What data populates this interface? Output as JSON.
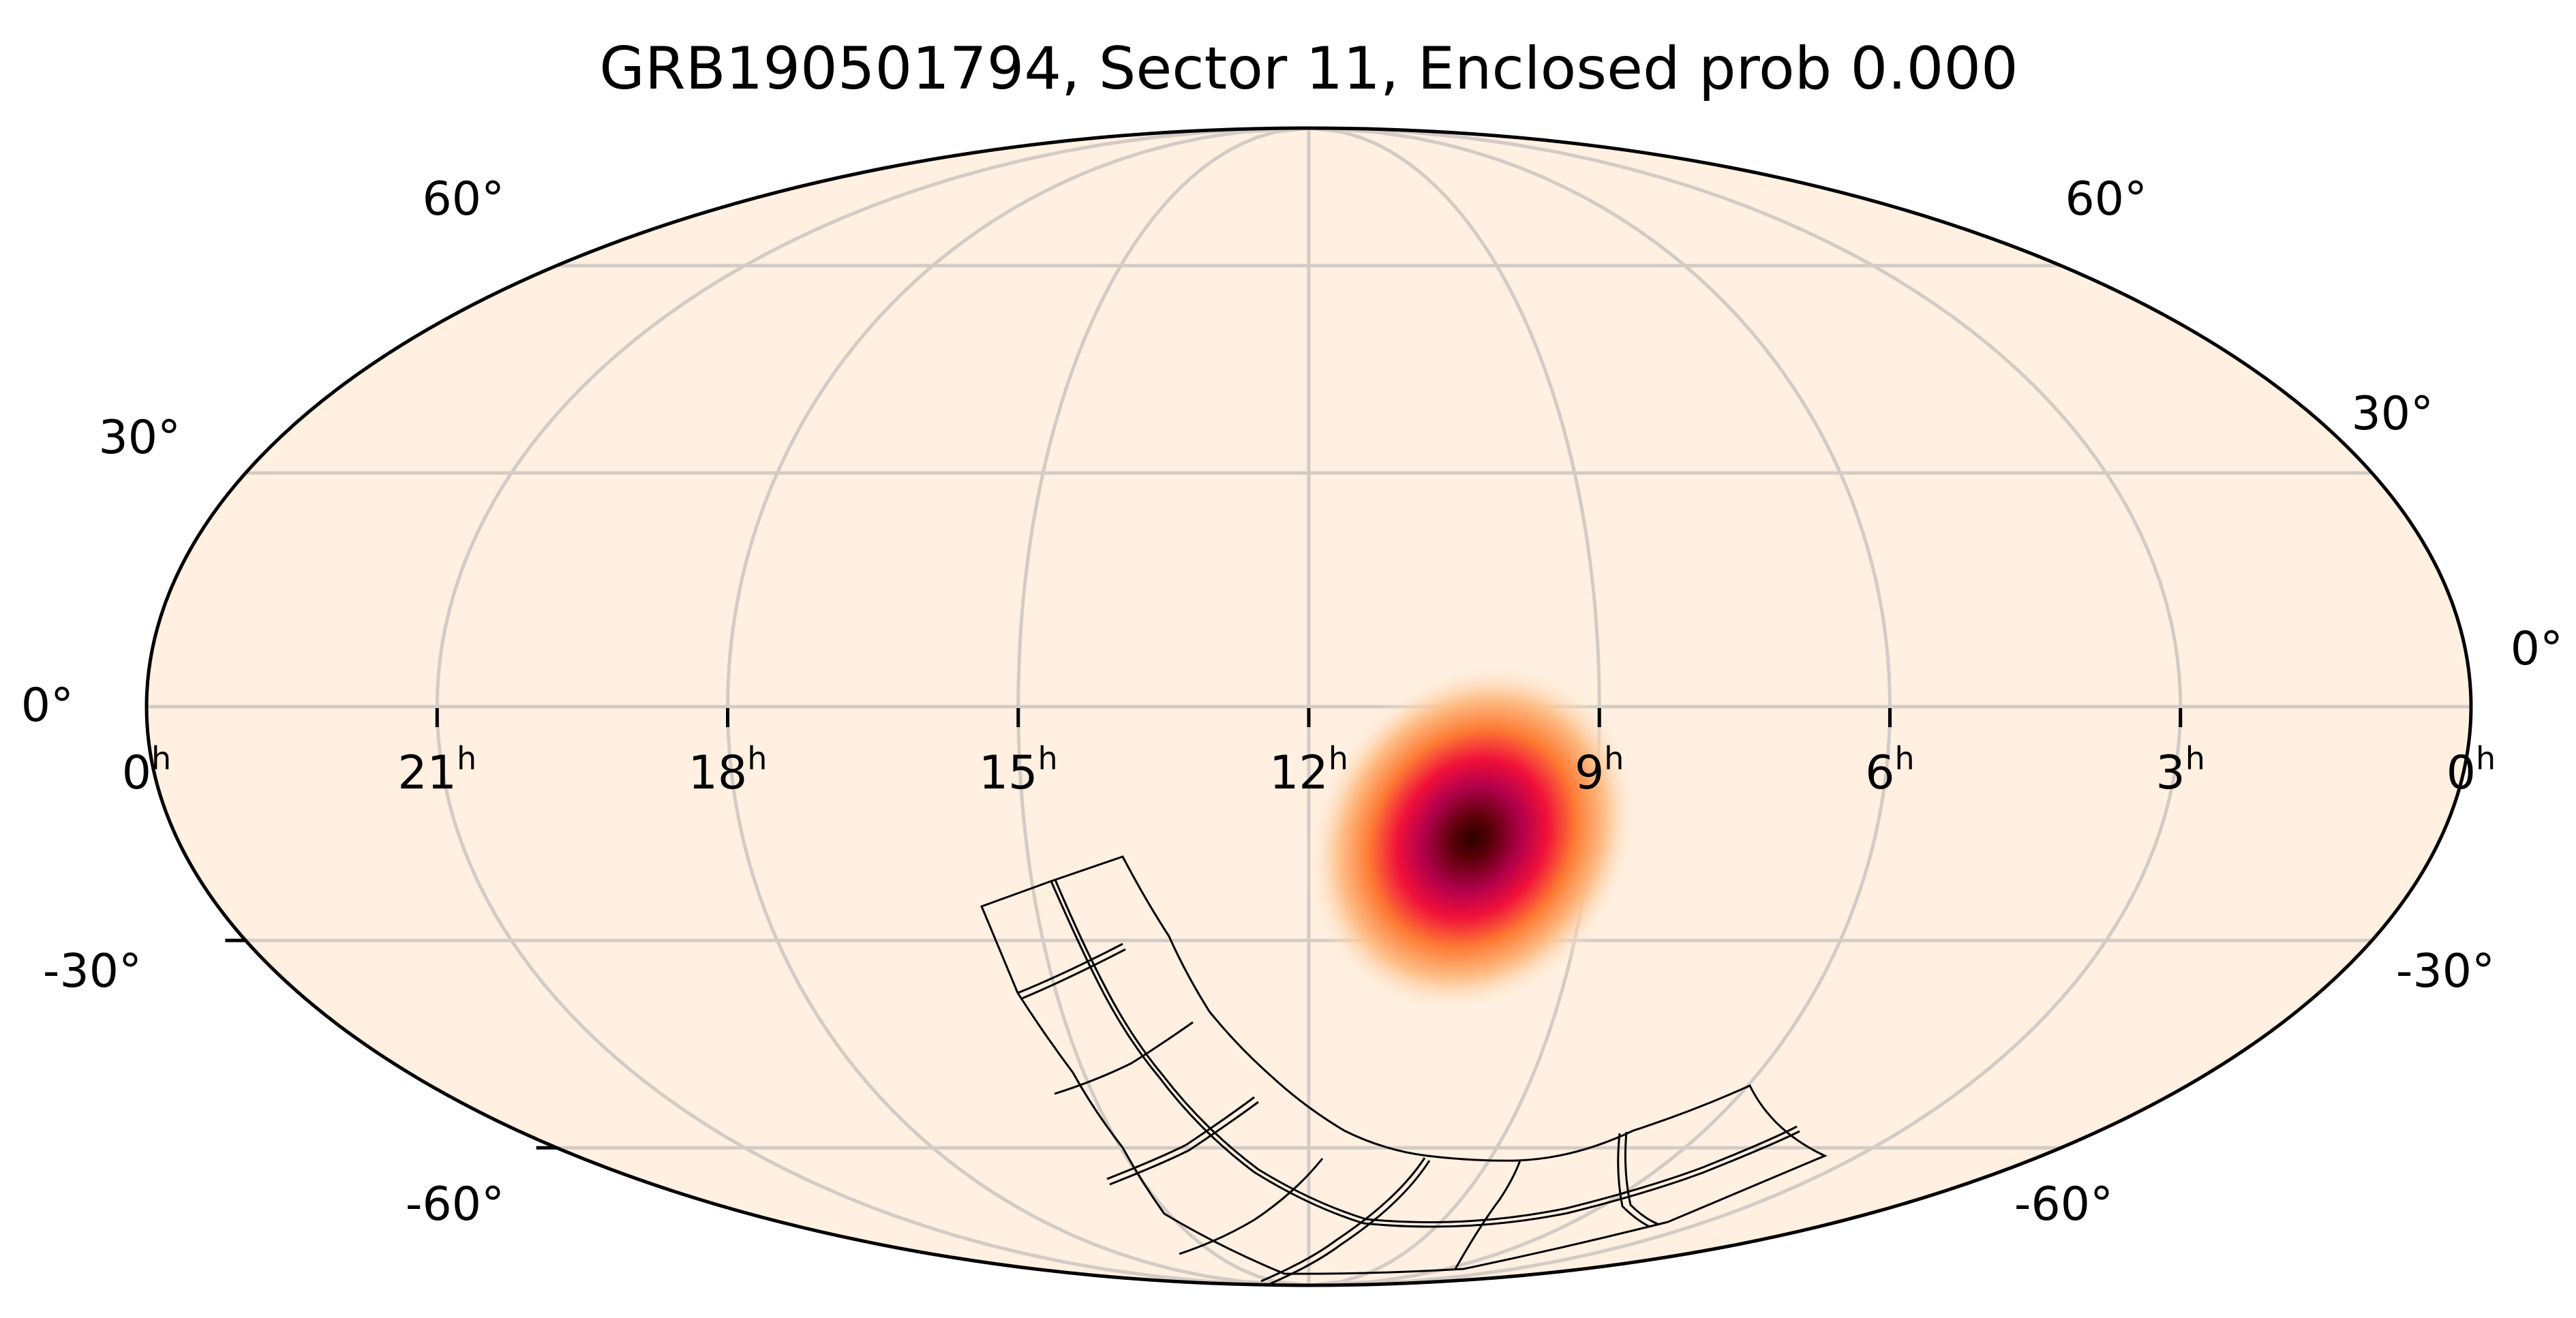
{
  "chart_data": {
    "type": "heatmap",
    "projection": "mollweide",
    "title": "GRB190501794, Sector 11, Enclosed prob 0.000",
    "xlabel": "",
    "ylabel": "",
    "grid": true,
    "background_color": "#fff0e1",
    "grid_color": "#d3cbc5",
    "colormap": [
      "#fff0e1",
      "#fdc08a",
      "#fd7a33",
      "#f0103a",
      "#b3004b",
      "#5a0008",
      "#2a0000"
    ],
    "ra_tick_labels": [
      {
        "value": "0",
        "unit": "h",
        "ra_hours": 24
      },
      {
        "value": "21",
        "unit": "h",
        "ra_hours": 21
      },
      {
        "value": "18",
        "unit": "h",
        "ra_hours": 18
      },
      {
        "value": "15",
        "unit": "h",
        "ra_hours": 15
      },
      {
        "value": "12",
        "unit": "h",
        "ra_hours": 12
      },
      {
        "value": "9",
        "unit": "h",
        "ra_hours": 9
      },
      {
        "value": "6",
        "unit": "h",
        "ra_hours": 6
      },
      {
        "value": "3",
        "unit": "h",
        "ra_hours": 3
      },
      {
        "value": "0",
        "unit": "h",
        "ra_hours": 0
      }
    ],
    "dec_tick_labels_left": [
      "60°",
      "30°",
      "0°",
      "-30°",
      "-60°"
    ],
    "dec_tick_labels_right": [
      "60°",
      "30°",
      "0°",
      "-30°",
      "-60°"
    ],
    "dec_values": [
      60,
      30,
      0,
      -30,
      -60
    ],
    "probability_peak": {
      "ra_hours": 10.2,
      "dec_deg": -17,
      "description": "GRB localization probability density blob"
    },
    "enclosed_probability": 0.0,
    "sector": 11,
    "grb_name": "GRB190501794",
    "footprint": {
      "description": "TESS Sector 11 camera/CCD footprint outlines (southern sky, 4 cameras x 4 CCDs)",
      "dec_range_deg": [
        -90,
        -20
      ]
    }
  }
}
